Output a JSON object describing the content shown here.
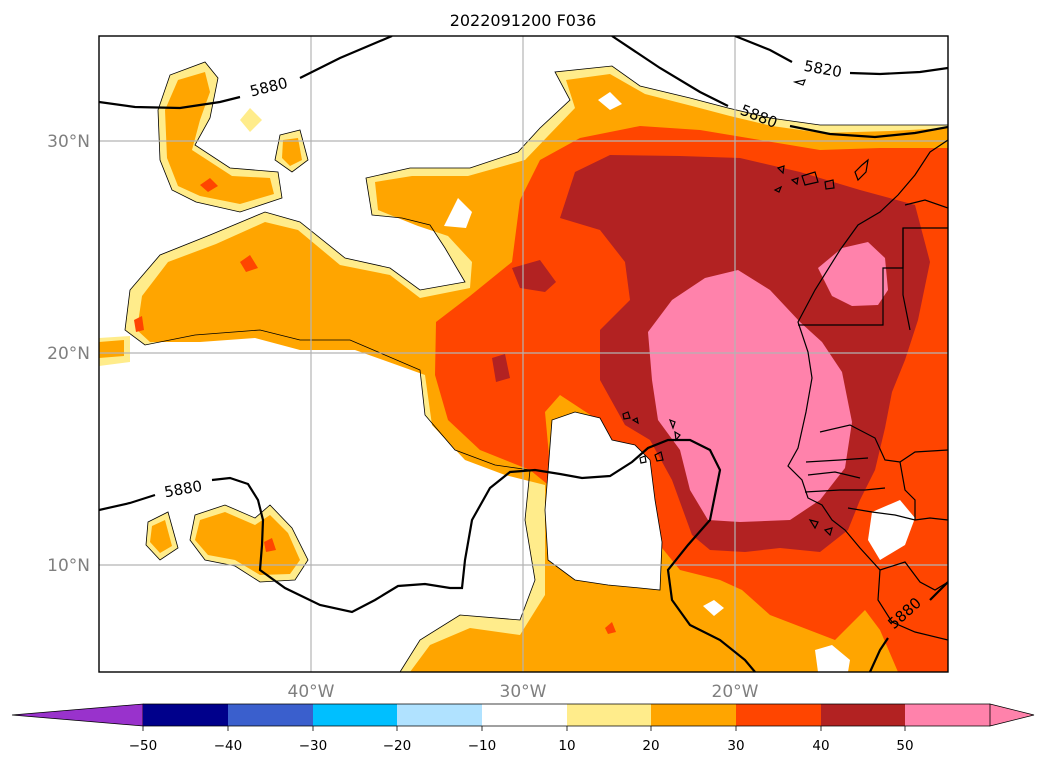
{
  "title": "2022091200 F036",
  "map": {
    "projection": "PlateCarree",
    "lon_range": [
      -50,
      -10
    ],
    "lat_range": [
      5,
      35
    ],
    "lat_ticks": [
      {
        "value": 30,
        "label": "30°N"
      },
      {
        "value": 20,
        "label": "20°N"
      },
      {
        "value": 10,
        "label": "10°N"
      }
    ],
    "lon_ticks": [
      {
        "value": -40,
        "label": "40°W"
      },
      {
        "value": -30,
        "label": "30°W"
      },
      {
        "value": -20,
        "label": "20°W"
      }
    ],
    "gridlines": true,
    "contour_lines": [
      {
        "value": "5880",
        "label": "5880"
      },
      {
        "value": "5820",
        "label": "5820"
      }
    ]
  },
  "colorbar": {
    "ticks": [
      "−50",
      "−40",
      "−30",
      "−20",
      "−10",
      "10",
      "20",
      "30",
      "40",
      "50"
    ],
    "extend": "both",
    "colors": [
      "#9932cc",
      "#00008b",
      "#3a5fcd",
      "#00bfff",
      "#b0e2ff",
      "#ffffff",
      "#ffec8b",
      "#ffa500",
      "#ff4500",
      "#b22222",
      "#ff82ab",
      "#ff82ab"
    ]
  },
  "palette": {
    "c10": "#ffec8b",
    "c20": "#ffa500",
    "c30": "#ff4500",
    "c40": "#b22222",
    "c50": "#ff82ab"
  }
}
